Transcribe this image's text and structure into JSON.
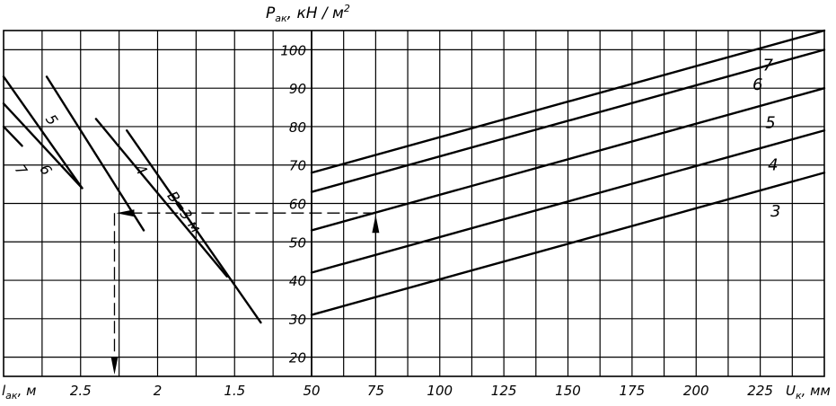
{
  "chart_data": [
    {
      "type": "line",
      "panel": "left",
      "xlabel": "lак, м",
      "ylabel": "Pак, кН / м²",
      "x_ticks": [
        "2.5",
        "2",
        "1.5"
      ],
      "y_ticks": [
        "100",
        "90",
        "80",
        "70",
        "60",
        "50",
        "40",
        "30",
        "20"
      ],
      "xlim": [
        3.0,
        1.0
      ],
      "ylim": [
        15,
        105
      ],
      "grid": true,
      "series": [
        {
          "name": "7",
          "x": [
            3.0,
            2.88
          ],
          "y": [
            80,
            75
          ]
        },
        {
          "name": "6",
          "x": [
            3.0,
            2.49
          ],
          "y": [
            86,
            64
          ]
        },
        {
          "name": "5",
          "x": [
            3.0,
            2.49
          ],
          "y": [
            93,
            64
          ]
        },
        {
          "name": "4",
          "x": [
            2.72,
            2.09
          ],
          "y": [
            93,
            53
          ]
        },
        {
          "name": "B=3 м",
          "x": [
            2.4,
            1.55
          ],
          "y": [
            82,
            41
          ]
        },
        {
          "name": "",
          "x": [
            2.2,
            1.33
          ],
          "y": [
            79,
            29
          ]
        }
      ],
      "annotations": [
        "7",
        "6",
        "5",
        "4",
        "B=3 м"
      ],
      "guide": {
        "y": 57.5,
        "x_result": 2.28
      }
    },
    {
      "type": "line",
      "panel": "right",
      "xlabel": "Uк, мм",
      "ylabel": "Pак, кН / м²",
      "x_ticks": [
        "50",
        "75",
        "100",
        "125",
        "150",
        "175",
        "200",
        "225"
      ],
      "xlim": [
        50,
        250
      ],
      "ylim": [
        15,
        105
      ],
      "grid": true,
      "series": [
        {
          "name": "7",
          "x": [
            50,
            250
          ],
          "y": [
            68,
            105
          ]
        },
        {
          "name": "6",
          "x": [
            50,
            250
          ],
          "y": [
            63,
            100
          ]
        },
        {
          "name": "5",
          "x": [
            50,
            250
          ],
          "y": [
            53,
            90
          ]
        },
        {
          "name": "4",
          "x": [
            50,
            250
          ],
          "y": [
            42,
            79
          ]
        },
        {
          "name": "3",
          "x": [
            50,
            250
          ],
          "y": [
            31,
            68
          ]
        }
      ],
      "guide": {
        "x": 75,
        "y": 57.5
      }
    }
  ],
  "labels": {
    "y_title_main": "P",
    "y_title_sub": "ак",
    "y_title_unit": ", кН / м",
    "y_title_sup": "2",
    "x_left_main": "l",
    "x_left_sub": "ак",
    "x_left_unit": ", м",
    "x_right_main": "U",
    "x_right_sub": "к",
    "x_right_unit": ", мм"
  }
}
